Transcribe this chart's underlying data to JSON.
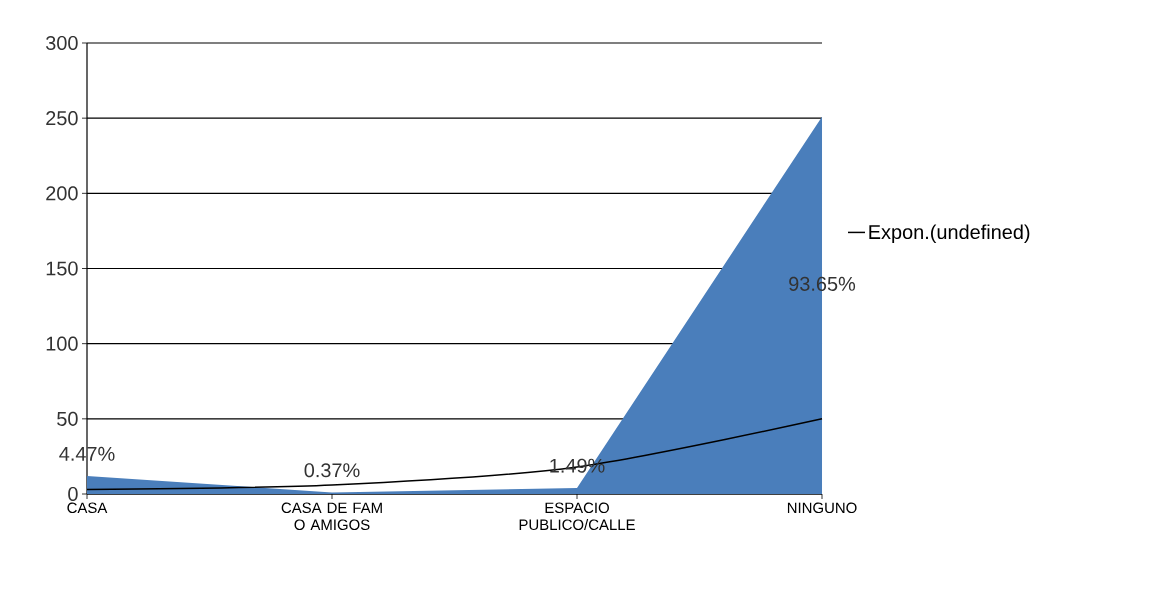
{
  "chart_data": {
    "type": "area",
    "categories": [
      "CASA",
      "CASA DE FAM O AMIGOS",
      "ESPACIO PUBLICO/CALLE",
      "NINGUNO"
    ],
    "series": [
      {
        "color": "#4a7ebb",
        "values": [
          12,
          1,
          4,
          251
        ]
      },
      {
        "name": "Expon.(undefined)",
        "type": "line",
        "color": "#000000",
        "values": [
          3,
          6,
          18,
          50
        ]
      }
    ],
    "annotations": [
      {
        "text": "4.47%",
        "x": "CASA",
        "y": 12
      },
      {
        "text": "0.37%",
        "x": "CASA DE FAM O AMIGOS",
        "y": 1
      },
      {
        "text": "1.49%",
        "x": "ESPACIO PUBLICO/CALLE",
        "y": 4
      },
      {
        "text": "93.65%",
        "x": "NINGUNO",
        "y": 125
      }
    ],
    "ylim": [
      0,
      300
    ],
    "yticks": [
      0,
      50,
      100,
      150,
      200,
      250,
      300
    ],
    "grid": "y",
    "legend": "right"
  }
}
